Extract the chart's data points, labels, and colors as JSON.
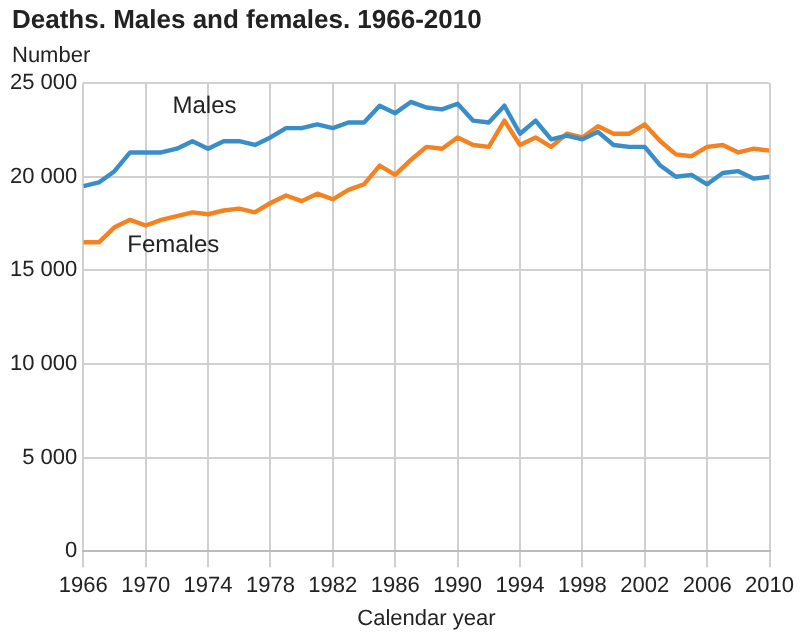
{
  "chart_data": {
    "type": "line",
    "title": "Deaths. Males and females. 1966-2010",
    "ylabel": "Number",
    "xlabel": "Calendar year",
    "x": [
      1966,
      1967,
      1968,
      1969,
      1970,
      1971,
      1972,
      1973,
      1974,
      1975,
      1976,
      1977,
      1978,
      1979,
      1980,
      1981,
      1982,
      1983,
      1984,
      1985,
      1986,
      1987,
      1988,
      1989,
      1990,
      1991,
      1992,
      1993,
      1994,
      1995,
      1996,
      1997,
      1998,
      1999,
      2000,
      2001,
      2002,
      2003,
      2004,
      2005,
      2006,
      2007,
      2008,
      2009,
      2010
    ],
    "series": [
      {
        "name": "Males",
        "color": "#3a8ec8",
        "values": [
          19500,
          19700,
          20300,
          21300,
          21300,
          21300,
          21500,
          21900,
          21500,
          21900,
          21900,
          21700,
          22100,
          22600,
          22600,
          22800,
          22600,
          22900,
          22900,
          23800,
          23400,
          24000,
          23700,
          23600,
          23900,
          23000,
          22900,
          23800,
          22300,
          23000,
          22000,
          22200,
          22000,
          22400,
          21700,
          21600,
          21600,
          20600,
          20000,
          20100,
          19600,
          20200,
          20300,
          19900,
          20000
        ]
      },
      {
        "name": "Females",
        "color": "#f58220",
        "values": [
          16500,
          16500,
          17300,
          17700,
          17400,
          17700,
          17900,
          18100,
          18000,
          18200,
          18300,
          18100,
          18600,
          19000,
          18700,
          19100,
          18800,
          19300,
          19600,
          20600,
          20100,
          20900,
          21600,
          21500,
          22100,
          21700,
          21600,
          23000,
          21700,
          22100,
          21600,
          22300,
          22100,
          22700,
          22300,
          22300,
          22800,
          21900,
          21200,
          21100,
          21600,
          21700,
          21300,
          21500,
          21400
        ]
      }
    ],
    "xlim": [
      1966,
      2010
    ],
    "xticks": [
      1966,
      1970,
      1974,
      1978,
      1982,
      1986,
      1990,
      1994,
      1998,
      2002,
      2006,
      2010
    ],
    "ylim": [
      0,
      25000
    ],
    "yticks": [
      {
        "value": 0,
        "label": "0"
      },
      {
        "value": 5000,
        "label": "5 000"
      },
      {
        "value": 10000,
        "label": "10 000"
      },
      {
        "value": 15000,
        "label": "15 000"
      },
      {
        "value": 20000,
        "label": "20 000"
      },
      {
        "value": 25000,
        "label": "25 000"
      }
    ],
    "grid": true,
    "legend": false,
    "marker": "none",
    "line_style": "solid"
  }
}
